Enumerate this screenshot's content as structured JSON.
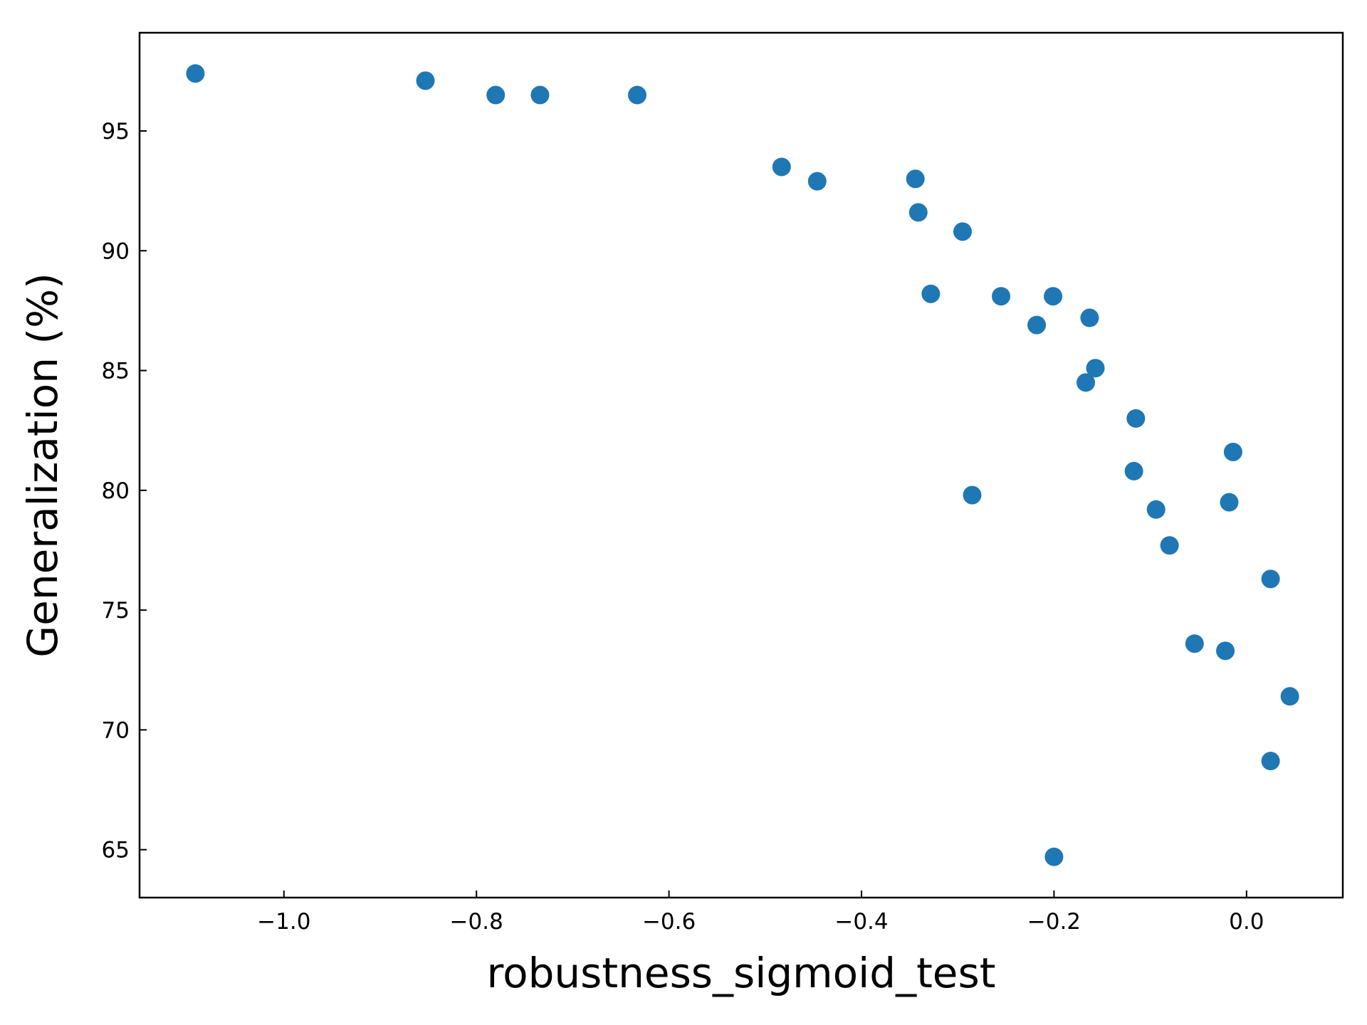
{
  "chart_data": {
    "type": "scatter",
    "title": "",
    "xlabel": "robustness_sigmoid_test",
    "ylabel": "Generalization (%)",
    "xlim": [
      -1.15,
      0.1
    ],
    "ylim": [
      63.0,
      99.1
    ],
    "xticks": [
      -1.0,
      -0.8,
      -0.6,
      -0.4,
      -0.2,
      0.0
    ],
    "xtick_labels": [
      "−1.0",
      "−0.8",
      "−0.6",
      "−0.4",
      "−0.2",
      "0.0"
    ],
    "yticks": [
      65,
      70,
      75,
      80,
      85,
      90,
      95
    ],
    "ytick_labels": [
      "65",
      "70",
      "75",
      "80",
      "85",
      "90",
      "95"
    ],
    "grid": false,
    "legend": false,
    "marker_color": "#1f77b4",
    "series": [
      {
        "points": [
          {
            "x": -1.092,
            "y": 97.4
          },
          {
            "x": -0.853,
            "y": 97.1
          },
          {
            "x": -0.78,
            "y": 96.5
          },
          {
            "x": -0.734,
            "y": 96.5
          },
          {
            "x": -0.633,
            "y": 96.5
          },
          {
            "x": -0.483,
            "y": 93.5
          },
          {
            "x": -0.446,
            "y": 92.9
          },
          {
            "x": -0.344,
            "y": 93.0
          },
          {
            "x": -0.341,
            "y": 91.6
          },
          {
            "x": -0.295,
            "y": 90.8
          },
          {
            "x": -0.328,
            "y": 88.2
          },
          {
            "x": -0.255,
            "y": 88.1
          },
          {
            "x": -0.201,
            "y": 88.1
          },
          {
            "x": -0.218,
            "y": 86.9
          },
          {
            "x": -0.163,
            "y": 87.2
          },
          {
            "x": -0.157,
            "y": 85.1
          },
          {
            "x": -0.167,
            "y": 84.5
          },
          {
            "x": -0.115,
            "y": 83.0
          },
          {
            "x": -0.117,
            "y": 80.8
          },
          {
            "x": -0.285,
            "y": 79.8
          },
          {
            "x": -0.094,
            "y": 79.2
          },
          {
            "x": -0.08,
            "y": 77.7
          },
          {
            "x": -0.014,
            "y": 81.6
          },
          {
            "x": -0.018,
            "y": 79.5
          },
          {
            "x": 0.025,
            "y": 76.3
          },
          {
            "x": -0.054,
            "y": 73.6
          },
          {
            "x": -0.022,
            "y": 73.3
          },
          {
            "x": 0.045,
            "y": 71.4
          },
          {
            "x": 0.025,
            "y": 68.7
          },
          {
            "x": -0.2,
            "y": 64.7
          }
        ]
      }
    ]
  }
}
